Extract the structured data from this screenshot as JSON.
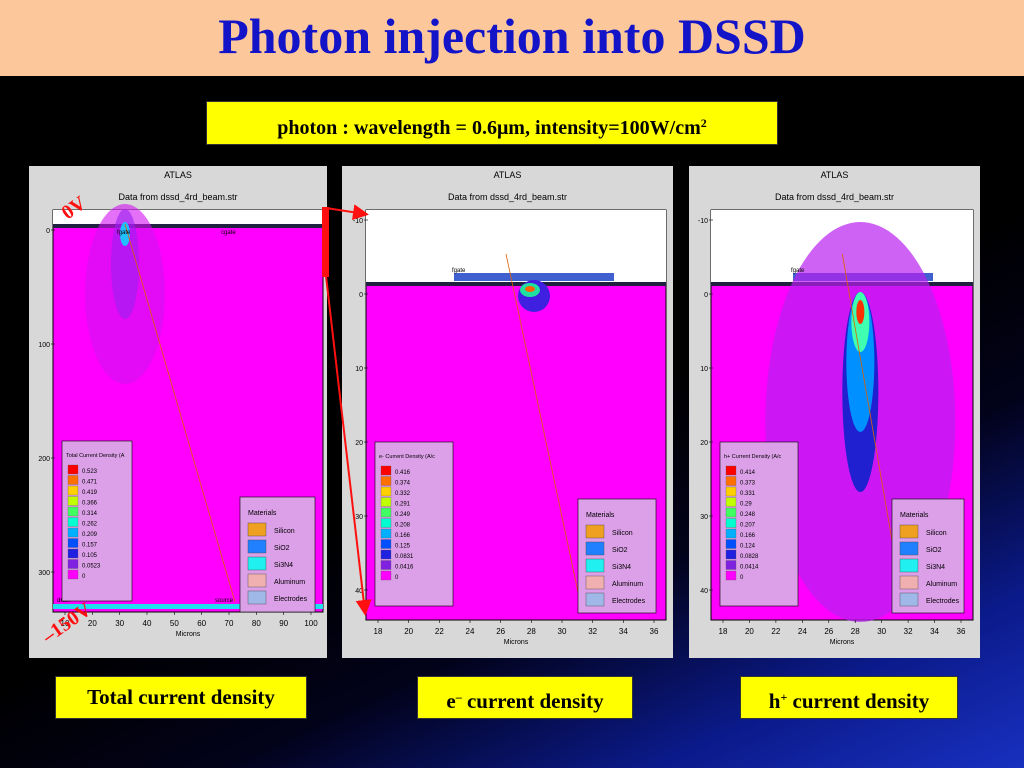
{
  "slide": {
    "title": "Photon injection into DSSD",
    "subtitle_main": "photon : wavelength = 0.6μm, intensity=100W/cm",
    "subtitle_sup": "2",
    "voltage_top": "0V",
    "voltage_bottom": "–150V"
  },
  "captions": {
    "total": "Total current density",
    "electron_main": "e",
    "electron_sup": "–",
    "electron_rest": " current density",
    "hole_main": "h",
    "hole_sup": "+",
    "hole_rest": " current density"
  },
  "panels": [
    {
      "header": "ATLAS",
      "source": "Data from dssd_4rd_beam.str",
      "xlabel": "Microns",
      "xticks": [
        "10",
        "20",
        "30",
        "40",
        "50",
        "60",
        "70",
        "80",
        "90",
        "100"
      ],
      "yticks": [
        "0",
        "100",
        "200",
        "300"
      ],
      "legend_title": "Total Current Density (A",
      "legend_values": [
        "0.523",
        "0.471",
        "0.419",
        "0.366",
        "0.314",
        "0.262",
        "0.209",
        "0.157",
        "0.105",
        "0.0523",
        "0"
      ],
      "labels": [
        "fgate",
        "cgate",
        "source",
        "drain"
      ]
    },
    {
      "header": "ATLAS",
      "source": "Data from dssd_4rd_beam.str",
      "xlabel": "Microns",
      "xticks": [
        "18",
        "20",
        "22",
        "24",
        "26",
        "28",
        "30",
        "32",
        "34",
        "36"
      ],
      "yticks": [
        "-10",
        "0",
        "10",
        "20",
        "30",
        "40"
      ],
      "legend_title": "e- Current Density (A/c",
      "legend_values": [
        "0.416",
        "0.374",
        "0.332",
        "0.291",
        "0.249",
        "0.208",
        "0.166",
        "0.125",
        "0.0831",
        "0.0416",
        "0"
      ],
      "labels": [
        "fgate"
      ]
    },
    {
      "header": "ATLAS",
      "source": "Data from dssd_4rd_beam.str",
      "xlabel": "Microns",
      "xticks": [
        "18",
        "20",
        "22",
        "24",
        "26",
        "28",
        "30",
        "32",
        "34",
        "36"
      ],
      "yticks": [
        "-10",
        "0",
        "10",
        "20",
        "30",
        "40"
      ],
      "legend_title": "h+ Current Density (A/c",
      "legend_values": [
        "0.414",
        "0.373",
        "0.331",
        "0.29",
        "0.248",
        "0.207",
        "0.166",
        "0.124",
        "0.0828",
        "0.0414",
        "0"
      ],
      "labels": [
        "fgate"
      ]
    }
  ],
  "materials": {
    "title": "Materials",
    "items": [
      {
        "name": "Silicon",
        "color": "#f0a020"
      },
      {
        "name": "SiO2",
        "color": "#2080ff"
      },
      {
        "name": "Si3N4",
        "color": "#20f0f0"
      },
      {
        "name": "Aluminum",
        "color": "#f0b0b0"
      },
      {
        "name": "Electrodes",
        "color": "#a0b8e8"
      }
    ]
  },
  "colors": {
    "background_fill": "#ff00ff",
    "legend_scale": [
      "#ff0000",
      "#ff7000",
      "#ffd000",
      "#c0ff00",
      "#40ff60",
      "#00ffd0",
      "#00b0ff",
      "#0050ff",
      "#2020e0",
      "#8020e0",
      "#ff00ff"
    ]
  }
}
